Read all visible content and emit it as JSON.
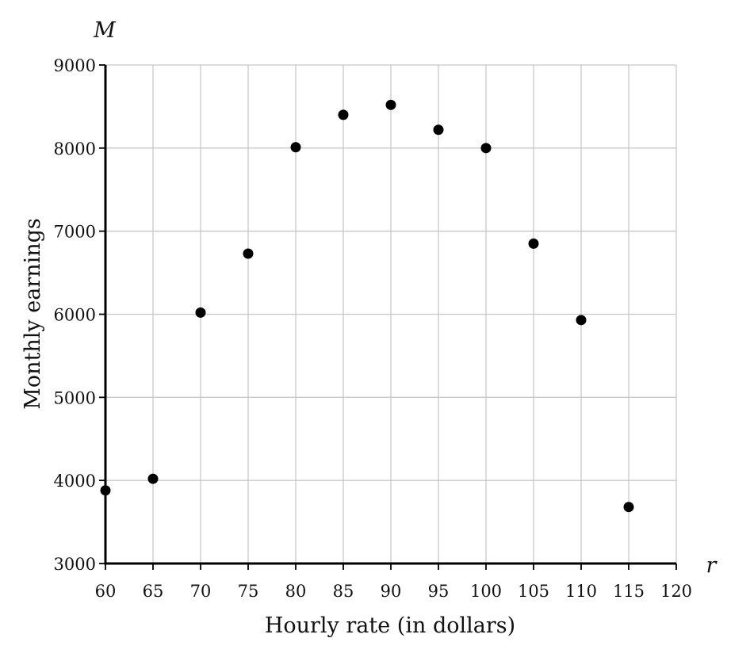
{
  "chart_data": {
    "type": "scatter",
    "xlabel": "Hourly rate (in dollars)",
    "ylabel": "Monthly earnings",
    "x_axis_variable": "r",
    "y_axis_variable": "M",
    "xlim": [
      60,
      120
    ],
    "ylim": [
      3000,
      9000
    ],
    "x_ticks": [
      60,
      65,
      70,
      75,
      80,
      85,
      90,
      95,
      100,
      105,
      110,
      115,
      120
    ],
    "y_ticks": [
      3000,
      4000,
      5000,
      6000,
      7000,
      8000,
      9000
    ],
    "grid": true,
    "points": [
      {
        "x": 60,
        "y": 3880
      },
      {
        "x": 65,
        "y": 4020
      },
      {
        "x": 70,
        "y": 6020
      },
      {
        "x": 75,
        "y": 6730
      },
      {
        "x": 80,
        "y": 8010
      },
      {
        "x": 85,
        "y": 8400
      },
      {
        "x": 90,
        "y": 8520
      },
      {
        "x": 95,
        "y": 8220
      },
      {
        "x": 100,
        "y": 8000
      },
      {
        "x": 105,
        "y": 6850
      },
      {
        "x": 110,
        "y": 5930
      },
      {
        "x": 115,
        "y": 3680
      }
    ],
    "colors": {
      "points": "#000000",
      "grid": "#c8c8c8",
      "axis": "#000000"
    }
  }
}
